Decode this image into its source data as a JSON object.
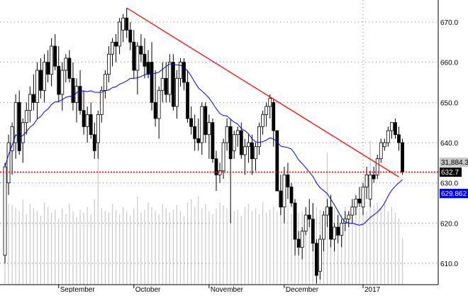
{
  "chart_data": {
    "type": "candlestick",
    "title": "",
    "xlabel": "",
    "ylabel": "",
    "ylim": [
      604,
      676
    ],
    "grid": true,
    "y_ticks": [
      "610.0",
      "620.0",
      "630.0",
      "640.0",
      "650.0",
      "660.0",
      "670.0"
    ],
    "y_tick_values": [
      610,
      620,
      630,
      640,
      650,
      660,
      670
    ],
    "x_ticks": [
      {
        "label": "September",
        "index": 15
      },
      {
        "label": "October",
        "index": 36
      },
      {
        "label": "November",
        "index": 57
      },
      {
        "label": "December",
        "index": 78
      },
      {
        "label": "2017",
        "index": 100
      }
    ],
    "candles": [
      [
        612,
        635,
        610,
        634
      ],
      [
        630,
        642,
        627,
        640
      ],
      [
        638,
        645,
        632,
        644
      ],
      [
        640,
        652,
        636,
        650
      ],
      [
        650,
        653,
        637,
        638
      ],
      [
        640,
        646,
        635,
        645
      ],
      [
        645,
        650,
        642,
        648
      ],
      [
        648,
        654,
        645,
        652
      ],
      [
        652,
        657,
        648,
        650
      ],
      [
        650,
        660,
        646,
        658
      ],
      [
        658,
        661,
        651,
        653
      ],
      [
        653,
        662,
        650,
        660
      ],
      [
        660,
        663,
        655,
        657
      ],
      [
        657,
        666,
        654,
        664
      ],
      [
        664,
        667,
        658,
        659
      ],
      [
        659,
        664,
        650,
        652
      ],
      [
        652,
        660,
        648,
        658
      ],
      [
        658,
        662,
        655,
        661
      ],
      [
        661,
        663,
        655,
        656
      ],
      [
        656,
        660,
        648,
        650
      ],
      [
        650,
        656,
        645,
        654
      ],
      [
        654,
        658,
        647,
        648
      ],
      [
        648,
        653,
        642,
        644
      ],
      [
        644,
        649,
        640,
        647
      ],
      [
        647,
        650,
        641,
        642
      ],
      [
        642,
        645,
        636,
        638
      ],
      [
        640,
        648,
        636,
        647
      ],
      [
        647,
        654,
        645,
        653
      ],
      [
        653,
        658,
        651,
        657
      ],
      [
        657,
        664,
        655,
        662
      ],
      [
        662,
        666,
        659,
        665
      ],
      [
        665,
        667,
        660,
        664
      ],
      [
        664,
        671,
        662,
        670
      ],
      [
        668,
        672,
        665,
        671
      ],
      [
        671,
        673.5,
        666,
        668
      ],
      [
        668,
        670,
        663,
        665
      ],
      [
        665,
        668,
        656,
        658
      ],
      [
        658,
        665,
        652,
        664
      ],
      [
        664,
        667,
        660,
        662
      ],
      [
        662,
        666,
        656,
        659
      ],
      [
        660,
        663,
        656,
        657
      ],
      [
        660,
        665,
        648,
        650
      ],
      [
        650,
        658,
        644,
        646
      ],
      [
        646,
        654,
        641,
        653
      ],
      [
        653,
        660,
        650,
        656
      ],
      [
        656,
        660,
        650,
        652
      ],
      [
        652,
        662,
        650,
        660
      ],
      [
        660,
        662,
        648,
        649
      ],
      [
        649,
        658,
        646,
        656
      ],
      [
        656,
        661,
        654,
        660
      ],
      [
        660,
        661,
        653,
        655
      ],
      [
        655,
        658,
        645,
        646
      ],
      [
        646,
        649,
        642,
        644
      ],
      [
        644,
        647,
        638,
        641
      ],
      [
        641,
        646,
        638,
        640
      ],
      [
        640,
        650,
        637,
        649
      ],
      [
        649,
        650,
        640,
        642
      ],
      [
        642,
        647,
        636,
        645
      ],
      [
        645,
        646,
        635,
        636
      ],
      [
        636,
        638,
        628,
        632
      ],
      [
        632,
        635,
        630,
        633
      ],
      [
        633,
        641,
        631,
        640
      ],
      [
        640,
        646,
        638,
        644
      ],
      [
        644,
        646,
        620,
        636
      ],
      [
        638,
        643,
        636,
        642
      ],
      [
        642,
        644,
        639,
        643
      ],
      [
        643,
        645,
        636,
        637
      ],
      [
        637,
        641,
        632,
        639
      ],
      [
        639,
        642,
        635,
        640
      ],
      [
        640,
        642,
        632,
        636
      ],
      [
        636,
        640,
        633,
        639
      ],
      [
        639,
        645,
        637,
        644
      ],
      [
        644,
        648,
        642,
        647
      ],
      [
        647,
        650,
        644,
        649
      ],
      [
        649,
        652,
        646,
        651
      ],
      [
        650,
        651,
        639,
        643
      ],
      [
        643,
        643,
        628,
        628
      ],
      [
        628,
        632,
        622,
        624
      ],
      [
        624,
        634,
        620,
        632
      ],
      [
        632,
        635,
        626,
        629
      ],
      [
        629,
        630,
        624,
        625
      ],
      [
        625,
        626,
        612,
        616
      ],
      [
        616,
        618,
        612,
        614
      ],
      [
        614,
        619,
        611,
        618
      ],
      [
        618,
        624,
        617,
        622
      ],
      [
        622,
        626,
        619,
        621
      ],
      [
        621,
        625,
        613,
        615
      ],
      [
        615,
        616,
        605,
        607
      ],
      [
        608,
        617,
        606,
        616
      ],
      [
        616,
        623,
        613,
        622
      ],
      [
        622,
        626,
        619,
        624
      ],
      [
        624,
        627,
        614,
        616
      ],
      [
        616,
        620,
        613,
        619
      ],
      [
        619,
        622,
        615,
        617
      ],
      [
        617,
        621,
        614,
        620
      ],
      [
        620,
        623,
        618,
        621
      ],
      [
        621,
        623,
        619,
        622
      ],
      [
        622,
        626,
        620,
        624
      ],
      [
        624,
        627,
        622,
        626
      ],
      [
        626,
        629,
        624,
        625
      ],
      [
        624,
        630,
        622,
        629
      ],
      [
        629,
        634,
        626,
        632
      ],
      [
        626,
        633,
        624,
        632
      ],
      [
        632,
        634,
        630,
        631
      ],
      [
        632,
        637,
        631,
        636
      ],
      [
        636,
        641,
        635,
        640
      ],
      [
        639,
        641,
        638,
        640
      ],
      [
        640,
        644,
        639,
        643
      ],
      [
        643,
        645,
        641,
        645
      ],
      [
        645,
        646,
        641,
        642
      ],
      [
        642,
        644,
        638,
        640
      ],
      [
        640,
        641,
        632,
        632.7
      ]
    ],
    "volumes": [
      62,
      55,
      54,
      52,
      50,
      58,
      48,
      55,
      52,
      50,
      47,
      56,
      53,
      49,
      51,
      45,
      52,
      48,
      55,
      50,
      46,
      51,
      49,
      53,
      48,
      58,
      95,
      52,
      50,
      49,
      55,
      51,
      48,
      53,
      50,
      47,
      52,
      60,
      49,
      51,
      56,
      53,
      50,
      48,
      55,
      52,
      49,
      51,
      54,
      50,
      47,
      56,
      58,
      53,
      60,
      52,
      55,
      50,
      48,
      52,
      56,
      54,
      52,
      49,
      50,
      51,
      47,
      53,
      55,
      50,
      52,
      48,
      56,
      49,
      51,
      53,
      50,
      55,
      52,
      54,
      48,
      51,
      49,
      50,
      46,
      52,
      55,
      53,
      51,
      50,
      90,
      54,
      52,
      50,
      48,
      53,
      50,
      49,
      55,
      52,
      51,
      50,
      98,
      54,
      56,
      52,
      57,
      50,
      53,
      49,
      45,
      31.88438
    ],
    "moving_average_period": 20,
    "moving_average_color": "#0000ff",
    "trendline": {
      "from": [
        34,
        673.5
      ],
      "to": [
        110,
        631.5
      ],
      "color": "#ff0000"
    },
    "support_level": {
      "value": 632.7,
      "color": "#ff0000"
    },
    "labels": {
      "volume_last": "31,884.38",
      "close_last": "632.7",
      "ma_last": "629.862"
    },
    "colors": {
      "up": "#ffffff",
      "down": "#000000",
      "volume": "#c8c8c8",
      "ma_label_bg": "#0000ff",
      "volume_label_bg": "#c8c8c8"
    }
  }
}
